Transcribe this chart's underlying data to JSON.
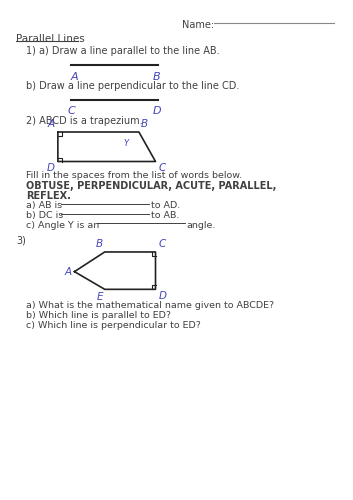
{
  "background": "#ffffff",
  "text_color": "#404040",
  "blue_color": "#4444bb",
  "line_color": "#222222",
  "name_label": "Name:",
  "heading": "Parallel Lines",
  "s1a": "1) a) Draw a line parallel to the line AB.",
  "s1b": "b) Draw a line perpendicular to the line CD.",
  "s2": "2) ABCD is a trapezium.",
  "fill_intro": "Fill in the spaces from the list of words below.",
  "fill_bold1": "OBTUSE, PERPENDICULAR, ACUTE, PARALLEL,",
  "fill_bold2": "REFLEX.",
  "qa_a_pre": "a) AB is",
  "qa_a_post": "to AD.",
  "qa_b_pre": "b) DC is",
  "qa_b_post": "to AB.",
  "qa_c_pre": "c) Angle Y is an",
  "qa_c_post": "angle.",
  "s3": "3)",
  "q3a": "a) What is the mathematical name given to ABCDE?",
  "q3b": "b) Which line is parallel to ED?",
  "q3c": "c) Which line is perpendicular to ED?"
}
